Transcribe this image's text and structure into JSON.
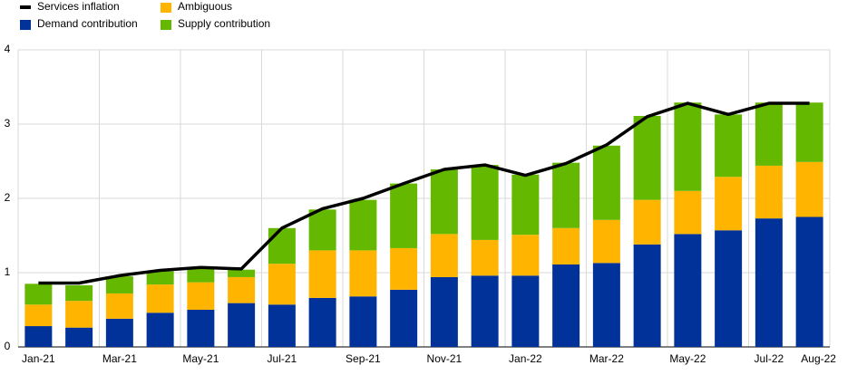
{
  "chart_data": {
    "type": "bar",
    "stacked": true,
    "categories": [
      "Jan-21",
      null,
      "Mar-21",
      null,
      "May-21",
      null,
      "Jul-21",
      null,
      "Sep-21",
      null,
      "Nov-21",
      null,
      "Jan-22",
      null,
      "Mar-22",
      null,
      "May-22",
      null,
      "Jul-22",
      "Aug-22"
    ],
    "series": [
      {
        "name": "Services inflation",
        "type": "line",
        "color": "#000000",
        "values": [
          0.86,
          0.86,
          0.96,
          1.03,
          1.07,
          1.05,
          1.6,
          1.86,
          2.0,
          2.2,
          2.39,
          2.45,
          2.31,
          2.47,
          2.72,
          3.1,
          3.28,
          3.13,
          3.28,
          3.28
        ]
      },
      {
        "name": "Demand contribution",
        "type": "bar",
        "color": "#003299",
        "values": [
          0.28,
          0.26,
          0.38,
          0.46,
          0.5,
          0.59,
          0.57,
          0.66,
          0.68,
          0.77,
          0.94,
          0.96,
          0.96,
          1.11,
          1.13,
          1.38,
          1.52,
          1.57,
          1.73,
          1.75
        ]
      },
      {
        "name": "Ambiguous",
        "type": "bar",
        "color": "#ffb400",
        "values": [
          0.29,
          0.36,
          0.34,
          0.38,
          0.37,
          0.35,
          0.55,
          0.64,
          0.62,
          0.56,
          0.58,
          0.48,
          0.55,
          0.49,
          0.58,
          0.6,
          0.58,
          0.72,
          0.71,
          0.74
        ]
      },
      {
        "name": "Supply contribution",
        "type": "bar",
        "color": "#65b800",
        "values": [
          0.28,
          0.21,
          0.23,
          0.18,
          0.19,
          0.1,
          0.48,
          0.55,
          0.68,
          0.87,
          0.87,
          1.01,
          0.81,
          0.88,
          1.0,
          1.13,
          1.19,
          0.84,
          0.85,
          0.8
        ]
      }
    ],
    "ylim": [
      0,
      4
    ],
    "yticks": [
      0,
      1,
      2,
      3,
      4
    ],
    "grid": true
  }
}
